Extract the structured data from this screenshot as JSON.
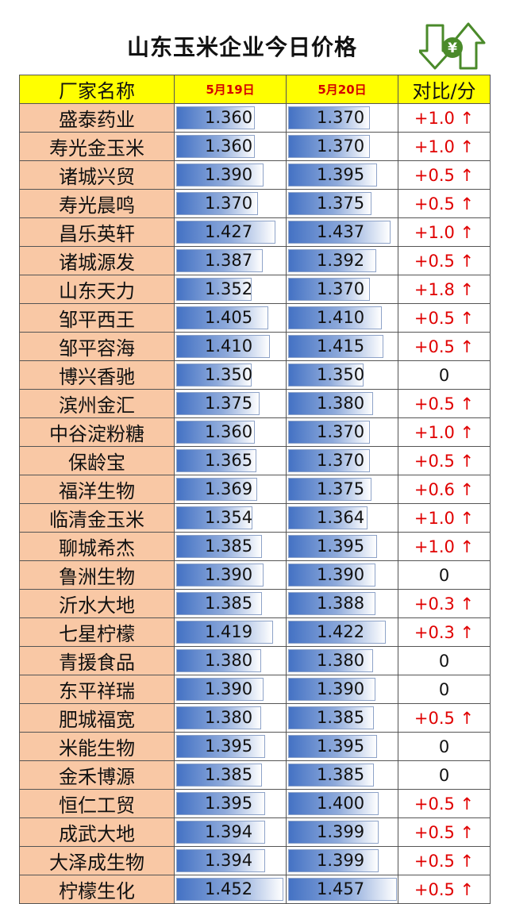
{
  "title": "山东玉米企业今日价格",
  "logo": {
    "icon": "yen-updown-arrows-icon",
    "glyph": "¥",
    "color": "#4a8a2a"
  },
  "colors": {
    "header_bg": "#ffff00",
    "name_bg": "#f9c8a5",
    "date_text": "#d40000",
    "up_text": "#e00000",
    "bar_start": "#4472c4"
  },
  "headers": {
    "name": "厂家名称",
    "date1": "5月19日",
    "date2": "5月20日",
    "diff": "对比/分"
  },
  "bar_scale": {
    "min": 1.3,
    "max": 1.46
  },
  "rows": [
    {
      "name": "盛泰药业",
      "p1": "1.360",
      "p2": "1.370",
      "diff": "+1.0 ↑"
    },
    {
      "name": "寿光金玉米",
      "p1": "1.360",
      "p2": "1.370",
      "diff": "+1.0 ↑"
    },
    {
      "name": "诸城兴贸",
      "p1": "1.390",
      "p2": "1.395",
      "diff": "+0.5 ↑"
    },
    {
      "name": "寿光晨鸣",
      "p1": "1.370",
      "p2": "1.375",
      "diff": "+0.5 ↑"
    },
    {
      "name": "昌乐英轩",
      "p1": "1.427",
      "p2": "1.437",
      "diff": "+1.0 ↑"
    },
    {
      "name": "诸城源发",
      "p1": "1.387",
      "p2": "1.392",
      "diff": "+0.5 ↑"
    },
    {
      "name": "山东天力",
      "p1": "1.352",
      "p2": "1.370",
      "diff": "+1.8 ↑"
    },
    {
      "name": "邹平西王",
      "p1": "1.405",
      "p2": "1.410",
      "diff": "+0.5 ↑"
    },
    {
      "name": "邹平容海",
      "p1": "1.410",
      "p2": "1.415",
      "diff": "+0.5 ↑"
    },
    {
      "name": "博兴香驰",
      "p1": "1.350",
      "p2": "1.350",
      "diff": "0"
    },
    {
      "name": "滨州金汇",
      "p1": "1.375",
      "p2": "1.380",
      "diff": "+0.5 ↑"
    },
    {
      "name": "中谷淀粉糖",
      "p1": "1.360",
      "p2": "1.370",
      "diff": "+1.0 ↑"
    },
    {
      "name": "保龄宝",
      "p1": "1.365",
      "p2": "1.370",
      "diff": "+0.5 ↑"
    },
    {
      "name": "福洋生物",
      "p1": "1.369",
      "p2": "1.375",
      "diff": "+0.6 ↑"
    },
    {
      "name": "临清金玉米",
      "p1": "1.354",
      "p2": "1.364",
      "diff": "+1.0 ↑"
    },
    {
      "name": "聊城希杰",
      "p1": "1.385",
      "p2": "1.395",
      "diff": "+1.0 ↑"
    },
    {
      "name": "鲁洲生物",
      "p1": "1.390",
      "p2": "1.390",
      "diff": "0"
    },
    {
      "name": "沂水大地",
      "p1": "1.385",
      "p2": "1.388",
      "diff": "+0.3 ↑"
    },
    {
      "name": "七星柠檬",
      "p1": "1.419",
      "p2": "1.422",
      "diff": "+0.3 ↑"
    },
    {
      "name": "青援食品",
      "p1": "1.380",
      "p2": "1.380",
      "diff": "0"
    },
    {
      "name": "东平祥瑞",
      "p1": "1.390",
      "p2": "1.390",
      "diff": "0"
    },
    {
      "name": "肥城福宽",
      "p1": "1.380",
      "p2": "1.385",
      "diff": "+0.5 ↑"
    },
    {
      "name": "米能生物",
      "p1": "1.395",
      "p2": "1.395",
      "diff": "0"
    },
    {
      "name": "金禾博源",
      "p1": "1.385",
      "p2": "1.385",
      "diff": "0"
    },
    {
      "name": "恒仁工贸",
      "p1": "1.395",
      "p2": "1.400",
      "diff": "+0.5 ↑"
    },
    {
      "name": "成武大地",
      "p1": "1.394",
      "p2": "1.399",
      "diff": "+0.5 ↑"
    },
    {
      "name": "大泽成生物",
      "p1": "1.394",
      "p2": "1.399",
      "diff": "+0.5 ↑"
    },
    {
      "name": "柠檬生化",
      "p1": "1.452",
      "p2": "1.457",
      "diff": "+0.5 ↑"
    }
  ]
}
